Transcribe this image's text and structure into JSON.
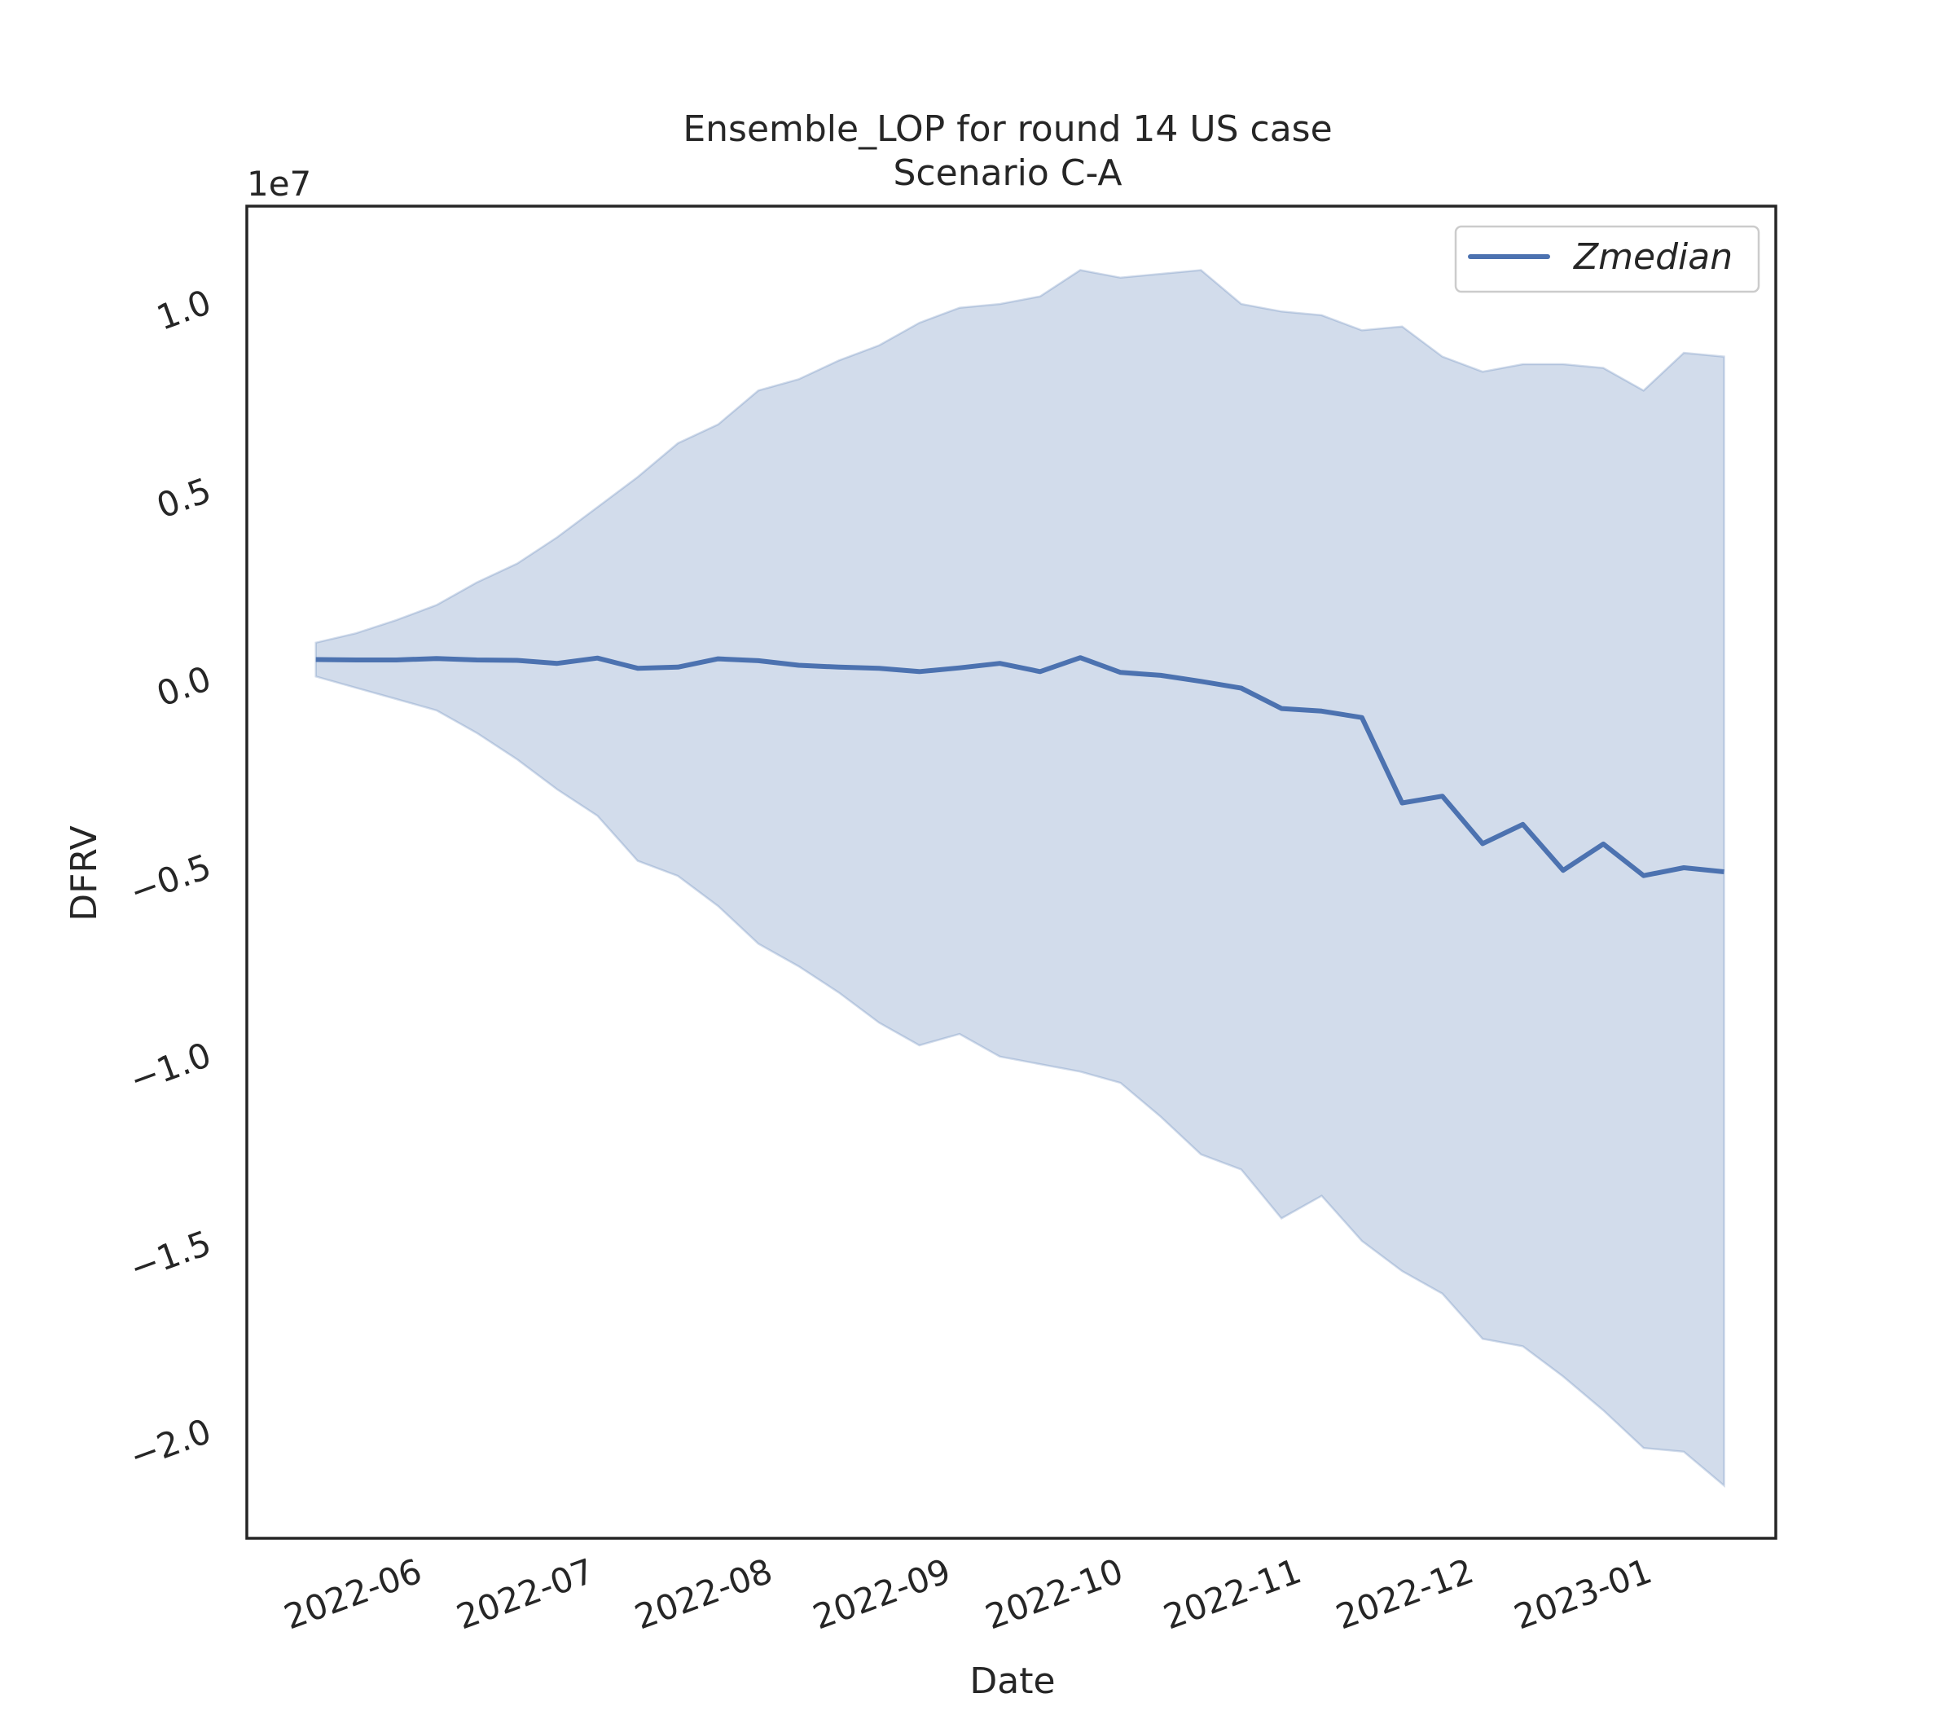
{
  "chart_data": {
    "type": "area",
    "title": "Ensemble_LOP for round 14 US case",
    "subtitle": "Scenario C-A",
    "xlabel": "Date",
    "ylabel": "DFRV",
    "y_offset_label": "1e7",
    "y_scale": 10000000,
    "ylim": [
      -23200000.0,
      12200000.0
    ],
    "xlim": [
      "2022-05-04",
      "2023-01-25"
    ],
    "x_ticks": [
      "2022-06-01",
      "2022-07-01",
      "2022-08-01",
      "2022-09-01",
      "2022-10-01",
      "2022-11-01",
      "2022-12-01",
      "2023-01-01"
    ],
    "x_tick_labels": [
      "2022-06",
      "2022-07",
      "2022-08",
      "2022-09",
      "2022-10",
      "2022-11",
      "2022-12",
      "2023-01"
    ],
    "y_ticks": [
      -20000000.0,
      -15000000.0,
      -10000000.0,
      -5000000.0,
      0,
      5000000.0,
      10000000.0
    ],
    "y_tick_labels": [
      "−2.0",
      "−1.5",
      "−1.0",
      "−0.5",
      "0.0",
      "0.5",
      "1.0"
    ],
    "legend_position": "top-right",
    "grid": false,
    "colors": {
      "line": "#4c72b0",
      "band": "#4c72b0"
    },
    "x": [
      "2022-05-16",
      "2022-05-23",
      "2022-05-30",
      "2022-06-06",
      "2022-06-13",
      "2022-06-20",
      "2022-06-27",
      "2022-07-04",
      "2022-07-11",
      "2022-07-18",
      "2022-07-25",
      "2022-08-01",
      "2022-08-08",
      "2022-08-15",
      "2022-08-22",
      "2022-08-29",
      "2022-09-05",
      "2022-09-12",
      "2022-09-19",
      "2022-09-26",
      "2022-10-03",
      "2022-10-10",
      "2022-10-17",
      "2022-10-24",
      "2022-10-31",
      "2022-11-07",
      "2022-11-14",
      "2022-11-21",
      "2022-11-28",
      "2022-12-05",
      "2022-12-12",
      "2022-12-19",
      "2022-12-26",
      "2023-01-02",
      "2023-01-09",
      "2023-01-16"
    ],
    "series": [
      {
        "name": "Zmedian",
        "values": [
          150000,
          140000,
          140000,
          180000,
          140000,
          130000,
          50000,
          190000,
          -80000,
          -50000,
          170000,
          120000,
          0,
          -50000,
          -80000,
          -170000,
          -70000,
          50000,
          -170000,
          200000,
          -190000,
          -270000,
          -430000,
          -610000,
          -1150000,
          -1220000,
          -1390000,
          -3660000,
          -3480000,
          -4740000,
          -4230000,
          -5450000,
          -4750000,
          -5590000,
          -5380000,
          -5490000
        ]
      },
      {
        "name": "upper",
        "values": [
          600000,
          850000,
          1200000,
          1600000,
          2200000,
          2700000,
          3400000,
          4200000,
          5000000,
          5900000,
          6400000,
          7300000,
          7600000,
          8100000,
          8500000,
          9100000,
          9500000,
          9600000,
          9800000,
          10500000,
          10300000,
          10400000,
          10500000,
          9600000,
          9400000,
          9300000,
          8900000,
          9000000,
          8200000,
          7800000,
          8000000,
          8000000,
          7900000,
          7300000,
          8300000,
          8200000
        ]
      },
      {
        "name": "lower",
        "values": [
          -300000,
          -600000,
          -900000,
          -1200000,
          -1800000,
          -2500000,
          -3300000,
          -4000000,
          -5200000,
          -5600000,
          -6400000,
          -7400000,
          -8000000,
          -8700000,
          -9500000,
          -10100000,
          -9800000,
          -10400000,
          -10600000,
          -10800000,
          -11100000,
          -12000000,
          -13000000,
          -13400000,
          -14700000,
          -14100000,
          -15300000,
          -16100000,
          -16700000,
          -17900000,
          -18100000,
          -18900000,
          -19800000,
          -20800000,
          -20900000,
          -21800000
        ]
      }
    ]
  }
}
